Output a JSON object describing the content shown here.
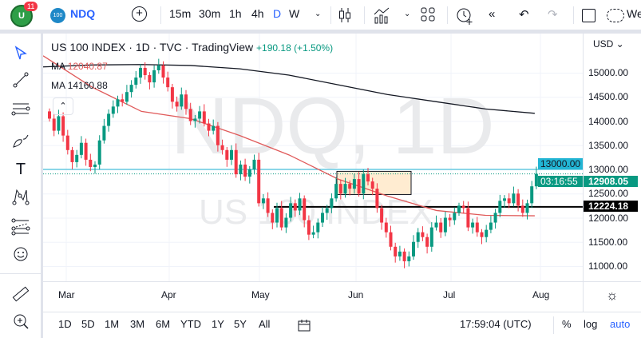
{
  "topbar": {
    "notifications": "11",
    "symbol_badge": "100",
    "symbol": "NDQ",
    "intervals": [
      "15m",
      "30m",
      "1h",
      "4h",
      "D",
      "W"
    ],
    "active_interval": "D",
    "cut_text": "We"
  },
  "legend": {
    "title": "US 100 INDEX · 1D · TVC · TradingView",
    "change": "+190.18 (+1.50%)",
    "ma1_label": "MA",
    "ma1_value": "12040.87",
    "ma2_label": "MA",
    "ma2_value": "14160.88"
  },
  "watermark": {
    "line1": "NDQ, 1D",
    "line2": "US 100 INDEX"
  },
  "price_axis": {
    "currency": "USD",
    "ticks": [
      "15000.00",
      "14500.00",
      "14000.00",
      "13500.00",
      "13000.00",
      "12500.00",
      "12000.00",
      "11500.00",
      "11000.00"
    ],
    "hline_13000": "13000.00",
    "last_price": "12908.05",
    "countdown": "03:16:55",
    "hline_level": "12224.18"
  },
  "time_axis": {
    "labels": [
      "Mar",
      "Apr",
      "May",
      "Jun",
      "Jul",
      "Aug"
    ]
  },
  "bottombar": {
    "ranges": [
      "1D",
      "5D",
      "1M",
      "3M",
      "6M",
      "YTD",
      "1Y",
      "5Y",
      "All"
    ],
    "clock": "17:59:04 (UTC)",
    "percent": "%",
    "log": "log",
    "auto": "auto"
  },
  "colors": {
    "up": "#089981",
    "down": "#f23645",
    "ma_fast": "#e05a5a",
    "ma_slow": "#131722",
    "accent": "#2962ff",
    "cyan": "#22b5d4"
  },
  "chart_data": {
    "type": "candlestick",
    "closes": [
      14050,
      13800,
      14100,
      13700,
      13400,
      13150,
      13300,
      13550,
      13200,
      13050,
      13100,
      13600,
      13900,
      14150,
      14300,
      14450,
      14400,
      14600,
      14750,
      14900,
      15100,
      14950,
      14800,
      15050,
      15150,
      14900,
      14700,
      14400,
      14300,
      14550,
      14250,
      14000,
      14050,
      14200,
      13950,
      13800,
      13900,
      13500,
      13400,
      13200,
      13400,
      12900,
      13100,
      12850,
      13000,
      13200,
      12300,
      12400,
      12100,
      11900,
      12200,
      11800,
      12000,
      12300,
      12150,
      12400,
      11950,
      11650,
      11700,
      11900,
      12100,
      12200,
      12400,
      12700,
      12500,
      12700,
      12600,
      12800,
      12500,
      12900,
      12750,
      12600,
      12200,
      11900,
      11700,
      11400,
      11200,
      11300,
      11100,
      11200,
      11500,
      11700,
      11600,
      11400,
      11800,
      11900,
      11700,
      12000,
      11950,
      12100,
      12250,
      12200,
      11800,
      11900,
      11700,
      11600,
      11750,
      11900,
      12100,
      12350,
      12400,
      12300,
      12500,
      12250,
      12100,
      12300,
      12650,
      12908
    ],
    "ma_slow": [
      15120,
      15160,
      15170,
      15150,
      15080,
      14950,
      14750,
      14550,
      14400,
      14250,
      14160
    ],
    "ma_fast": [
      15350,
      14700,
      14200,
      14050,
      13700,
      13300,
      12800,
      12450,
      12150,
      12050,
      12040
    ],
    "horizontal_lines": [
      13000,
      12224.18
    ],
    "box": [
      12480,
      12960
    ],
    "ylim": [
      10600,
      15600
    ]
  }
}
